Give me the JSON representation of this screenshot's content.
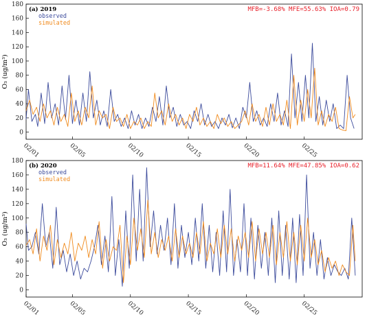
{
  "chart_data": [
    {
      "type": "line",
      "panel_label": "(a) 2019",
      "metrics": "MFB=-3.68% MFE=55.63% IOA=0.79",
      "ylabel": "O₃ (ug/m³)",
      "ylim": [
        -10,
        180
      ],
      "yticks": [
        0,
        20,
        40,
        60,
        80,
        100,
        120,
        140,
        160,
        180
      ],
      "xlim": [
        1,
        30
      ],
      "x_ticks": [
        {
          "x": 1,
          "label": "02/01"
        },
        {
          "x": 5,
          "label": "02/05"
        },
        {
          "x": 10,
          "label": "02/10"
        },
        {
          "x": 15,
          "label": "02/15"
        },
        {
          "x": 20,
          "label": "02/20"
        },
        {
          "x": 25,
          "label": "02/25"
        }
      ],
      "x_unit": "day of February",
      "series": [
        {
          "name": "observed",
          "color": "#3b4a9b",
          "x": [
            1.0,
            1.2,
            1.5,
            1.8,
            2.0,
            2.3,
            2.6,
            2.9,
            3.2,
            3.5,
            3.8,
            4.1,
            4.4,
            4.7,
            5.0,
            5.3,
            5.6,
            5.9,
            6.2,
            6.5,
            6.8,
            7.1,
            7.4,
            7.7,
            8.0,
            8.3,
            8.6,
            8.9,
            9.2,
            9.5,
            9.8,
            10.1,
            10.4,
            10.7,
            11.0,
            11.3,
            11.6,
            11.9,
            12.2,
            12.5,
            12.8,
            13.1,
            13.4,
            13.7,
            14.0,
            14.3,
            14.6,
            14.9,
            15.2,
            15.5,
            15.8,
            16.1,
            16.4,
            16.7,
            17.0,
            17.3,
            17.6,
            17.9,
            18.2,
            18.5,
            18.8,
            19.1,
            19.4,
            19.7,
            20.0,
            20.3,
            20.6,
            20.9,
            21.2,
            21.5,
            21.8,
            22.1,
            22.4,
            22.7,
            23.0,
            23.3,
            23.6,
            23.9,
            24.2,
            24.5,
            24.8,
            25.1,
            25.4,
            25.7,
            26.0,
            26.3,
            26.6,
            26.9,
            27.2,
            27.5,
            27.8,
            28.1,
            28.4,
            28.7,
            29.0,
            29.3
          ],
          "y": [
            18,
            60,
            15,
            25,
            8,
            55,
            12,
            70,
            20,
            40,
            10,
            65,
            18,
            80,
            12,
            45,
            10,
            55,
            15,
            85,
            20,
            45,
            10,
            30,
            8,
            60,
            15,
            25,
            8,
            20,
            5,
            30,
            10,
            25,
            5,
            20,
            8,
            35,
            15,
            50,
            10,
            65,
            20,
            35,
            8,
            25,
            10,
            15,
            5,
            30,
            15,
            40,
            10,
            25,
            8,
            15,
            5,
            20,
            10,
            25,
            6,
            20,
            5,
            35,
            20,
            70,
            15,
            30,
            10,
            20,
            8,
            40,
            15,
            55,
            10,
            30,
            8,
            110,
            20,
            70,
            15,
            80,
            20,
            125,
            15,
            50,
            10,
            45,
            15,
            40,
            5,
            10,
            5,
            80,
            20,
            5
          ]
        },
        {
          "name": "simulated",
          "color": "#f08a1c",
          "x": [
            1.0,
            1.3,
            1.6,
            1.9,
            2.2,
            2.5,
            2.8,
            3.1,
            3.4,
            3.7,
            4.0,
            4.3,
            4.6,
            4.9,
            5.2,
            5.5,
            5.8,
            6.1,
            6.4,
            6.7,
            7.0,
            7.3,
            7.6,
            7.9,
            8.2,
            8.5,
            8.8,
            9.1,
            9.4,
            9.7,
            10.0,
            10.3,
            10.6,
            10.9,
            11.2,
            11.5,
            11.8,
            12.1,
            12.4,
            12.7,
            13.0,
            13.3,
            13.6,
            13.9,
            14.2,
            14.5,
            14.8,
            15.1,
            15.4,
            15.7,
            16.0,
            16.3,
            16.6,
            16.9,
            17.2,
            17.5,
            17.8,
            18.1,
            18.4,
            18.7,
            19.0,
            19.3,
            19.6,
            19.9,
            20.2,
            20.5,
            20.8,
            21.1,
            21.4,
            21.7,
            22.0,
            22.3,
            22.6,
            22.9,
            23.2,
            23.5,
            23.8,
            24.1,
            24.4,
            24.7,
            25.0,
            25.3,
            25.6,
            25.9,
            26.2,
            26.5,
            26.8,
            27.1,
            27.4,
            27.7,
            28.0,
            28.3,
            28.6,
            28.9,
            29.2,
            29.4
          ],
          "y": [
            30,
            45,
            25,
            35,
            15,
            40,
            20,
            30,
            10,
            35,
            15,
            25,
            8,
            55,
            15,
            30,
            10,
            35,
            20,
            65,
            10,
            30,
            20,
            25,
            5,
            35,
            15,
            20,
            8,
            25,
            5,
            15,
            10,
            20,
            5,
            15,
            8,
            55,
            20,
            30,
            10,
            40,
            15,
            25,
            10,
            20,
            5,
            25,
            15,
            35,
            10,
            20,
            8,
            15,
            5,
            25,
            12,
            20,
            8,
            15,
            5,
            10,
            15,
            30,
            10,
            40,
            15,
            25,
            8,
            35,
            10,
            40,
            15,
            25,
            10,
            45,
            5,
            80,
            10,
            45,
            15,
            60,
            20,
            90,
            10,
            30,
            8,
            25,
            15,
            35,
            5,
            3,
            2,
            50,
            20,
            25
          ]
        }
      ]
    },
    {
      "type": "line",
      "panel_label": "(b) 2020",
      "metrics": "MFB=11.64% MFE=47.85% IOA=0.62",
      "ylabel": "O₃ (ug/m³)",
      "ylim": [
        -10,
        180
      ],
      "yticks": [
        0,
        20,
        40,
        60,
        80,
        100,
        120,
        140,
        160,
        180
      ],
      "xlim": [
        1,
        30
      ],
      "x_ticks": [
        {
          "x": 1,
          "label": "02/01"
        },
        {
          "x": 5,
          "label": "02/05"
        },
        {
          "x": 10,
          "label": "02/10"
        },
        {
          "x": 15,
          "label": "02/15"
        },
        {
          "x": 20,
          "label": "02/20"
        },
        {
          "x": 25,
          "label": "02/25"
        }
      ],
      "x_unit": "day of February",
      "series": [
        {
          "name": "observed",
          "color": "#3b4a9b",
          "x": [
            1.0,
            1.2,
            1.5,
            1.8,
            2.1,
            2.4,
            2.7,
            3.0,
            3.3,
            3.6,
            3.9,
            4.2,
            4.5,
            4.8,
            5.1,
            5.4,
            5.7,
            6.0,
            6.3,
            6.6,
            6.9,
            7.2,
            7.5,
            7.8,
            8.1,
            8.4,
            8.7,
            9.0,
            9.3,
            9.6,
            9.9,
            10.2,
            10.5,
            10.8,
            11.1,
            11.4,
            11.7,
            12.0,
            12.3,
            12.6,
            12.9,
            13.2,
            13.5,
            13.8,
            14.1,
            14.4,
            14.7,
            15.0,
            15.3,
            15.6,
            15.9,
            16.2,
            16.5,
            16.8,
            17.1,
            17.4,
            17.7,
            18.0,
            18.3,
            18.6,
            18.9,
            19.2,
            19.5,
            19.8,
            20.1,
            20.4,
            20.7,
            21.0,
            21.3,
            21.6,
            21.9,
            22.2,
            22.5,
            22.8,
            23.1,
            23.4,
            23.7,
            24.0,
            24.3,
            24.6,
            24.9,
            25.2,
            25.5,
            25.8,
            26.1,
            26.4,
            26.7,
            27.0,
            27.3,
            27.6,
            27.9,
            28.2,
            28.5,
            28.8,
            29.1,
            29.4
          ],
          "y": [
            92,
            55,
            60,
            80,
            50,
            120,
            60,
            80,
            30,
            115,
            35,
            55,
            25,
            50,
            20,
            40,
            15,
            30,
            25,
            40,
            60,
            90,
            35,
            75,
            25,
            130,
            20,
            70,
            5,
            110,
            30,
            160,
            40,
            140,
            40,
            170,
            60,
            110,
            50,
            90,
            55,
            100,
            35,
            120,
            30,
            90,
            45,
            80,
            35,
            100,
            40,
            120,
            30,
            90,
            25,
            80,
            20,
            110,
            25,
            140,
            20,
            70,
            25,
            120,
            20,
            100,
            15,
            90,
            30,
            80,
            20,
            100,
            10,
            110,
            20,
            90,
            15,
            100,
            10,
            105,
            20,
            160,
            30,
            80,
            20,
            70,
            15,
            45,
            20,
            35,
            25,
            20,
            30,
            15,
            100,
            20
          ]
        },
        {
          "name": "simulated",
          "color": "#f08a1c",
          "x": [
            1.0,
            1.3,
            1.6,
            1.9,
            2.2,
            2.5,
            2.8,
            3.1,
            3.4,
            3.7,
            4.0,
            4.3,
            4.6,
            4.9,
            5.2,
            5.5,
            5.8,
            6.1,
            6.4,
            6.7,
            7.0,
            7.3,
            7.6,
            7.9,
            8.2,
            8.5,
            8.8,
            9.1,
            9.4,
            9.7,
            10.0,
            10.3,
            10.6,
            10.9,
            11.2,
            11.5,
            11.8,
            12.1,
            12.4,
            12.7,
            13.0,
            13.3,
            13.6,
            13.9,
            14.2,
            14.5,
            14.8,
            15.1,
            15.4,
            15.7,
            16.0,
            16.3,
            16.6,
            16.9,
            17.2,
            17.5,
            17.8,
            18.1,
            18.4,
            18.7,
            19.0,
            19.3,
            19.6,
            19.9,
            20.2,
            20.5,
            20.8,
            21.1,
            21.4,
            21.7,
            22.0,
            22.3,
            22.6,
            22.9,
            23.2,
            23.5,
            23.8,
            24.1,
            24.4,
            24.7,
            25.0,
            25.3,
            25.6,
            25.9,
            26.2,
            26.5,
            26.8,
            27.1,
            27.4,
            27.7,
            28.0,
            28.3,
            28.6,
            28.9,
            29.2,
            29.4
          ],
          "y": [
            62,
            70,
            50,
            85,
            40,
            75,
            55,
            90,
            35,
            70,
            45,
            65,
            50,
            80,
            40,
            65,
            55,
            75,
            45,
            70,
            50,
            95,
            30,
            70,
            40,
            60,
            55,
            90,
            10,
            75,
            35,
            100,
            55,
            85,
            45,
            125,
            50,
            80,
            45,
            70,
            55,
            75,
            40,
            85,
            45,
            75,
            50,
            65,
            45,
            80,
            50,
            95,
            40,
            65,
            50,
            85,
            45,
            90,
            50,
            85,
            40,
            75,
            55,
            80,
            45,
            95,
            40,
            85,
            50,
            80,
            45,
            90,
            35,
            80,
            45,
            95,
            40,
            80,
            35,
            90,
            40,
            100,
            45,
            70,
            35,
            55,
            25,
            45,
            30,
            40,
            20,
            35,
            25,
            20,
            90,
            40
          ]
        }
      ]
    }
  ]
}
